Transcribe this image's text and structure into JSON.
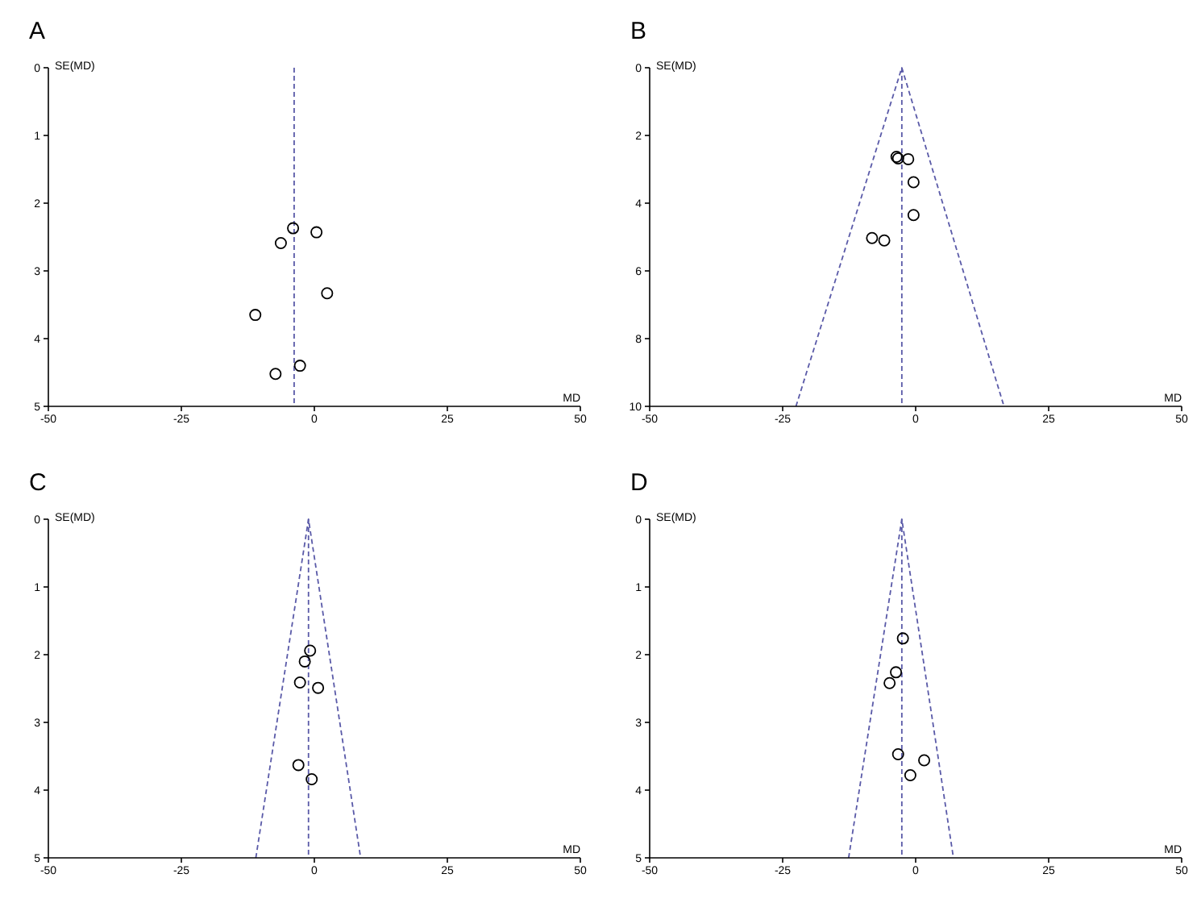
{
  "chart_data": [
    {
      "type": "scatter",
      "title": "A",
      "xlabel": "MD",
      "ylabel": "SE(MD)",
      "xlim": [
        -50,
        50
      ],
      "xticks": [
        -50,
        -25,
        0,
        25,
        50
      ],
      "ylim": [
        5,
        0
      ],
      "yticks": [
        0,
        1,
        2,
        3,
        4,
        5
      ],
      "marker": "circle",
      "ref_lines": [
        {
          "axis": "x",
          "value": -3.8,
          "color": "#5a5aa8",
          "line_style": "dashed"
        }
      ],
      "series": [
        {
          "color": "#000000",
          "x": [
            -4.0,
            0.4,
            -6.3,
            2.4,
            -11.1,
            -2.7,
            -7.3
          ],
          "values": [
            2.37,
            2.43,
            2.59,
            3.33,
            3.65,
            4.4,
            4.52
          ]
        }
      ]
    },
    {
      "type": "scatter",
      "title": "B",
      "xlabel": "MD",
      "ylabel": "SE(MD)",
      "xlim": [
        -50,
        50
      ],
      "xticks": [
        -50,
        -25,
        0,
        25,
        50
      ],
      "ylim": [
        10,
        0
      ],
      "yticks": [
        0,
        2,
        4,
        6,
        8,
        10
      ],
      "marker": "circle",
      "ref_lines": [
        {
          "axis": "x",
          "value": -2.6,
          "color": "#5a5aa8",
          "line_style": "dashed"
        }
      ],
      "series": [
        {
          "color": "#000000",
          "x": [
            -3.6,
            -3.3,
            -1.4,
            -0.4,
            -0.4,
            -8.2,
            -5.9
          ],
          "values": [
            2.63,
            2.68,
            2.7,
            3.38,
            4.35,
            5.03,
            5.1
          ]
        },
        {
          "type": "line",
          "marker": "none",
          "color": "#5a5aa8",
          "line_style": "dashed",
          "x": [
            -22.5,
            -2.6,
            16.6
          ],
          "values": [
            10,
            0,
            10
          ]
        }
      ]
    },
    {
      "type": "scatter",
      "title": "C",
      "xlabel": "MD",
      "ylabel": "SE(MD)",
      "xlim": [
        -50,
        50
      ],
      "xticks": [
        -50,
        -25,
        0,
        25,
        50
      ],
      "ylim": [
        5,
        0
      ],
      "yticks": [
        0,
        1,
        2,
        3,
        4,
        5
      ],
      "marker": "circle",
      "ref_lines": [
        {
          "axis": "x",
          "value": -1.1,
          "color": "#5a5aa8",
          "line_style": "dashed"
        }
      ],
      "series": [
        {
          "color": "#000000",
          "x": [
            -0.8,
            -1.8,
            -2.7,
            0.7,
            -3.0,
            -0.5
          ],
          "values": [
            1.94,
            2.1,
            2.41,
            2.49,
            3.63,
            3.84
          ]
        },
        {
          "type": "line",
          "marker": "none",
          "color": "#5a5aa8",
          "line_style": "dashed",
          "x": [
            -11.0,
            -1.1,
            8.7
          ],
          "values": [
            5,
            0,
            5
          ]
        }
      ]
    },
    {
      "type": "scatter",
      "title": "D",
      "xlabel": "MD",
      "ylabel": "SE(MD)",
      "xlim": [
        -50,
        50
      ],
      "xticks": [
        -50,
        -25,
        0,
        25,
        50
      ],
      "ylim": [
        5,
        0
      ],
      "yticks": [
        0,
        1,
        2,
        3,
        4,
        5
      ],
      "marker": "circle",
      "ref_lines": [
        {
          "axis": "x",
          "value": -2.6,
          "color": "#5a5aa8",
          "line_style": "dashed"
        }
      ],
      "series": [
        {
          "color": "#000000",
          "x": [
            -2.4,
            -3.7,
            -4.9,
            -3.3,
            1.6,
            -1.0
          ],
          "values": [
            1.76,
            2.26,
            2.42,
            3.47,
            3.56,
            3.78
          ]
        },
        {
          "type": "line",
          "marker": "none",
          "color": "#5a5aa8",
          "line_style": "dashed",
          "x": [
            -12.6,
            -2.6,
            7.1
          ],
          "values": [
            5,
            0,
            5
          ]
        }
      ]
    }
  ]
}
